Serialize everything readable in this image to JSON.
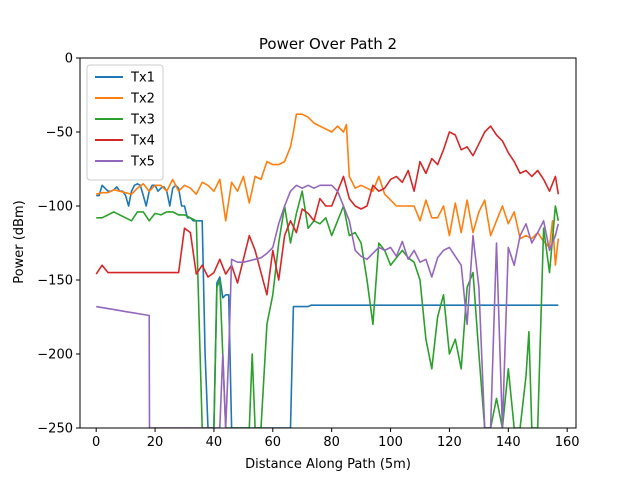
{
  "chart_data": {
    "type": "line",
    "title": "Power Over Path 2",
    "xlabel": "Distance Along Path (5m)",
    "ylabel": "Power (dBm)",
    "xlim": [
      -5.5,
      163
    ],
    "ylim": [
      -250,
      0
    ],
    "xticks": [
      0,
      20,
      40,
      60,
      80,
      100,
      120,
      140,
      160
    ],
    "yticks": [
      0,
      -50,
      -100,
      -150,
      -200,
      -250
    ],
    "ytick_labels": [
      "0",
      "−50",
      "−100",
      "−150",
      "−200",
      "−250"
    ],
    "grid": false,
    "legend_position": "top-left",
    "series": [
      {
        "name": "Tx1",
        "color": "#1f77b4",
        "x": [
          0,
          1,
          2,
          3,
          4,
          5,
          6,
          7,
          8,
          9,
          10,
          11,
          12,
          13,
          14,
          15,
          16,
          17,
          18,
          19,
          20,
          21,
          22,
          23,
          24,
          25,
          26,
          27,
          28,
          29,
          30,
          31,
          32,
          33,
          34,
          35,
          36,
          37,
          38,
          39,
          40,
          41,
          42,
          43,
          44,
          45,
          46,
          47,
          48,
          49,
          50,
          51,
          52,
          53,
          54,
          55,
          56,
          57,
          58,
          59,
          60,
          61,
          62,
          63,
          64,
          65,
          66,
          67,
          68,
          69,
          70,
          71,
          72,
          73,
          74,
          75,
          76,
          77,
          78,
          79,
          80,
          81,
          82,
          83,
          84,
          85,
          86,
          87,
          88,
          89,
          90,
          91,
          92,
          93,
          94,
          95,
          96,
          97,
          98,
          99,
          100,
          101,
          102,
          103,
          104,
          105,
          106,
          107,
          108,
          109,
          110,
          111,
          112,
          113,
          114,
          115,
          116,
          117,
          118,
          119,
          120,
          121,
          122,
          123,
          124,
          125,
          126,
          127,
          128,
          129,
          130,
          131,
          132,
          133,
          134,
          135,
          136,
          137,
          138,
          139,
          140,
          141,
          142,
          143,
          144,
          145,
          146,
          147,
          148,
          149,
          150,
          151,
          152,
          153,
          154,
          155,
          156,
          157
        ],
        "y": [
          -93,
          -93,
          -86,
          -88,
          -90,
          -90,
          -89,
          -87,
          -90,
          -90,
          -93,
          -100,
          -90,
          -86,
          -85,
          -86,
          -93,
          -100,
          -90,
          -86,
          -86,
          -90,
          -88,
          -87,
          -90,
          -100,
          -88,
          -86,
          -88,
          -100,
          -100,
          -108,
          -108,
          -110,
          -110,
          -110,
          -110,
          -200,
          -250,
          -250,
          -250,
          -152,
          -148,
          -162,
          -160,
          -160,
          -250,
          -250,
          -250,
          -250,
          -250,
          -250,
          -250,
          -250,
          -250,
          -250,
          -250,
          -250,
          -250,
          -250,
          -250,
          -250,
          -250,
          -250,
          -250,
          -250,
          -250,
          -168,
          -168,
          -168,
          -168,
          -168,
          -168,
          -167,
          -167,
          -167,
          -167,
          -167,
          -167,
          -167,
          -167,
          -167,
          -167,
          -167,
          -167,
          -167,
          -167,
          -167,
          -167,
          -167,
          -167,
          -167,
          -167,
          -167,
          -167,
          -167,
          -167,
          -167,
          -167,
          -167,
          -167,
          -167,
          -167,
          -167,
          -167,
          -167,
          -167,
          -167,
          -167,
          -167,
          -167,
          -167,
          -167,
          -167,
          -167,
          -167,
          -167,
          -167,
          -167,
          -167,
          -167,
          -167,
          -167,
          -167,
          -167,
          -167,
          -167,
          -167,
          -167,
          -167,
          -167,
          -167,
          -167,
          -167,
          -167,
          -167,
          -167,
          -167,
          -167,
          -167,
          -167,
          -167,
          -167,
          -167,
          -167,
          -167,
          -167,
          -167,
          -167,
          -167,
          -167,
          -167,
          -167,
          -167,
          -167,
          -167,
          -167,
          -167
        ]
      },
      {
        "name": "Tx2",
        "color": "#ff7f0e",
        "x": [
          0,
          2,
          4,
          6,
          8,
          10,
          12,
          14,
          16,
          18,
          20,
          22,
          24,
          26,
          28,
          30,
          32,
          34,
          36,
          38,
          40,
          42,
          44,
          46,
          48,
          50,
          52,
          54,
          56,
          58,
          60,
          62,
          64,
          66,
          67,
          68,
          70,
          72,
          74,
          76,
          78,
          80,
          82,
          84,
          85,
          86,
          88,
          90,
          92,
          94,
          96,
          98,
          100,
          102,
          104,
          106,
          108,
          110,
          112,
          114,
          116,
          118,
          120,
          122,
          124,
          126,
          128,
          130,
          132,
          134,
          136,
          138,
          140,
          142,
          144,
          146,
          148,
          150,
          152,
          154,
          155,
          156,
          157
        ],
        "y": [
          -92,
          -91,
          -91,
          -89,
          -90,
          -91,
          -92,
          -88,
          -85,
          -90,
          -86,
          -86,
          -90,
          -82,
          -90,
          -86,
          -88,
          -92,
          -84,
          -86,
          -90,
          -82,
          -110,
          -84,
          -90,
          -80,
          -98,
          -80,
          -82,
          -70,
          -72,
          -72,
          -70,
          -60,
          -50,
          -38,
          -38,
          -40,
          -44,
          -46,
          -48,
          -50,
          -46,
          -50,
          -45,
          -80,
          -88,
          -86,
          -88,
          -90,
          -80,
          -92,
          -96,
          -100,
          -100,
          -100,
          -100,
          -110,
          -96,
          -108,
          -108,
          -100,
          -120,
          -98,
          -118,
          -96,
          -118,
          -104,
          -96,
          -120,
          -110,
          -100,
          -112,
          -104,
          -122,
          -120,
          -122,
          -118,
          -124,
          -128,
          -110,
          -140,
          -122
        ]
      },
      {
        "name": "Tx3",
        "color": "#2ca02c",
        "x": [
          0,
          2,
          4,
          6,
          8,
          10,
          12,
          14,
          16,
          18,
          20,
          22,
          24,
          26,
          28,
          30,
          32,
          34,
          36,
          38,
          40,
          41,
          42,
          44,
          46,
          48,
          50,
          52,
          53,
          54,
          56,
          58,
          60,
          62,
          64,
          66,
          68,
          70,
          72,
          74,
          76,
          78,
          80,
          82,
          84,
          86,
          88,
          90,
          92,
          94,
          96,
          98,
          100,
          102,
          104,
          106,
          108,
          110,
          112,
          114,
          116,
          118,
          120,
          122,
          124,
          126,
          128,
          130,
          132,
          134,
          136,
          138,
          140,
          142,
          144,
          146,
          147,
          148,
          150,
          152,
          154,
          156,
          157
        ],
        "y": [
          -108,
          -108,
          -106,
          -104,
          -106,
          -108,
          -110,
          -104,
          -104,
          -110,
          -105,
          -106,
          -104,
          -104,
          -106,
          -106,
          -108,
          -110,
          -250,
          -250,
          -250,
          -155,
          -150,
          -250,
          -250,
          -250,
          -250,
          -250,
          -200,
          -250,
          -250,
          -180,
          -160,
          -125,
          -100,
          -125,
          -105,
          -90,
          -115,
          -110,
          -112,
          -108,
          -120,
          -110,
          -100,
          -120,
          -118,
          -125,
          -150,
          -180,
          -125,
          -130,
          -140,
          -135,
          -130,
          -135,
          -138,
          -150,
          -190,
          -210,
          -175,
          -160,
          -200,
          -190,
          -210,
          -155,
          -145,
          -200,
          -250,
          -250,
          -230,
          -250,
          -210,
          -250,
          -250,
          -215,
          -185,
          -250,
          -250,
          -115,
          -145,
          -100,
          -110
        ]
      },
      {
        "name": "Tx4",
        "color": "#d62728",
        "x": [
          0,
          2,
          4,
          6,
          8,
          10,
          12,
          14,
          16,
          18,
          20,
          22,
          24,
          26,
          28,
          30,
          32,
          34,
          36,
          38,
          40,
          42,
          44,
          46,
          48,
          50,
          52,
          54,
          56,
          58,
          60,
          62,
          64,
          66,
          68,
          70,
          72,
          74,
          76,
          78,
          80,
          82,
          84,
          86,
          88,
          90,
          92,
          94,
          96,
          98,
          100,
          102,
          104,
          106,
          108,
          110,
          112,
          114,
          116,
          118,
          120,
          122,
          124,
          126,
          128,
          130,
          132,
          134,
          136,
          138,
          140,
          142,
          144,
          146,
          148,
          150,
          152,
          154,
          156,
          157
        ],
        "y": [
          -146,
          -140,
          -145,
          -145,
          -145,
          -145,
          -145,
          -145,
          -145,
          -145,
          -145,
          -145,
          -145,
          -145,
          -145,
          -115,
          -118,
          -146,
          -140,
          -148,
          -145,
          -136,
          -146,
          -140,
          -152,
          -136,
          -120,
          -130,
          -145,
          -160,
          -130,
          -150,
          -120,
          -110,
          -118,
          -102,
          -105,
          -110,
          -95,
          -100,
          -100,
          -90,
          -80,
          -95,
          -100,
          -102,
          -100,
          -86,
          -90,
          -88,
          -82,
          -80,
          -84,
          -76,
          -90,
          -70,
          -78,
          -68,
          -72,
          -62,
          -50,
          -52,
          -62,
          -60,
          -66,
          -58,
          -50,
          -46,
          -52,
          -56,
          -64,
          -70,
          -78,
          -76,
          -80,
          -76,
          -82,
          -90,
          -80,
          -92
        ]
      },
      {
        "name": "Tx5",
        "color": "#9467bd",
        "x": [
          0,
          3,
          6,
          9,
          12,
          15,
          18,
          18.1,
          20,
          22,
          24,
          26,
          28,
          30,
          32,
          34,
          36,
          38,
          40,
          42,
          43,
          44,
          45,
          46,
          48,
          50,
          52,
          54,
          56,
          58,
          60,
          62,
          64,
          66,
          68,
          70,
          72,
          74,
          76,
          78,
          80,
          82,
          84,
          86,
          88,
          90,
          92,
          94,
          96,
          98,
          100,
          102,
          104,
          106,
          108,
          110,
          112,
          114,
          116,
          118,
          120,
          122,
          124,
          126,
          128,
          130,
          132,
          134,
          136,
          138,
          140,
          142,
          144,
          146,
          148,
          150,
          152,
          154,
          156,
          157
        ],
        "y": [
          -168,
          -169,
          -170,
          -171,
          -172,
          -173,
          -174,
          -250,
          -250,
          -250,
          -250,
          -250,
          -250,
          -250,
          -250,
          -250,
          -250,
          -250,
          -250,
          -250,
          -200,
          -250,
          -200,
          -136,
          -138,
          -138,
          -137,
          -136,
          -135,
          -132,
          -128,
          -112,
          -100,
          -90,
          -86,
          -88,
          -86,
          -88,
          -86,
          -86,
          -86,
          -90,
          -100,
          -110,
          -130,
          -134,
          -136,
          -132,
          -128,
          -130,
          -128,
          -134,
          -124,
          -136,
          -130,
          -138,
          -136,
          -148,
          -135,
          -130,
          -128,
          -134,
          -140,
          -180,
          -120,
          -155,
          -250,
          -250,
          -125,
          -250,
          -128,
          -140,
          -120,
          -112,
          -125,
          -118,
          -110,
          -130,
          -120,
          -112
        ]
      }
    ]
  }
}
